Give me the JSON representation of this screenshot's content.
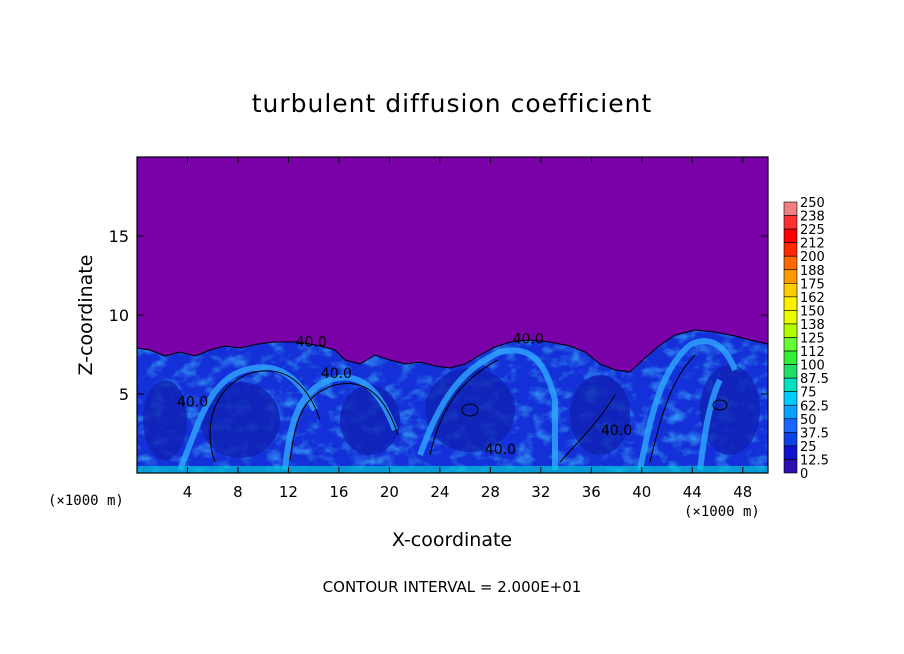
{
  "chart_data": {
    "type": "heatmap",
    "title": "turbulent diffusion coefficient",
    "xlabel": "X-coordinate",
    "ylabel": "Z-coordinate",
    "x_unit": "(×1000 m)",
    "xlim": [
      0,
      50
    ],
    "ylim": [
      0,
      20
    ],
    "x_ticks": [
      4,
      8,
      12,
      16,
      20,
      24,
      28,
      32,
      36,
      40,
      44,
      48
    ],
    "y_ticks": [
      5,
      10,
      15
    ],
    "colorbar_levels": [
      "250",
      "238",
      "225",
      "212",
      "200",
      "188",
      "175",
      "162",
      "150",
      "138",
      "125",
      "112",
      "100",
      "87.5",
      "75",
      "62.5",
      "50",
      "37.5",
      "25",
      "12.5",
      "0"
    ],
    "colorbar_colors": [
      "#f08080",
      "#ff3030",
      "#ff0000",
      "#ff2a00",
      "#ff6a00",
      "#ff9900",
      "#ffcc00",
      "#ffee00",
      "#e6ff00",
      "#b0ff00",
      "#66ff33",
      "#33ee33",
      "#22dd66",
      "#00e0c0",
      "#00ccff",
      "#0aa0ff",
      "#1a66ff",
      "#0f40e8",
      "#1010d0",
      "#2d0fb0",
      "#7a00a8"
    ],
    "background_color": "#7a00a8",
    "contour_labels": [
      {
        "text": "40.0",
        "x": 13.8,
        "z": 8.0
      },
      {
        "text": "40.0",
        "x": 15.8,
        "z": 6.0
      },
      {
        "text": "40.0",
        "x": 4.4,
        "z": 4.2
      },
      {
        "text": "40.0",
        "x": 28.8,
        "z": 1.2
      },
      {
        "text": "40.0",
        "x": 31.0,
        "z": 8.2
      },
      {
        "text": "40.0",
        "x": 38.0,
        "z": 2.4
      }
    ],
    "contour_interval_text": "CONTOUR INTERVAL = 2.000E+01"
  }
}
